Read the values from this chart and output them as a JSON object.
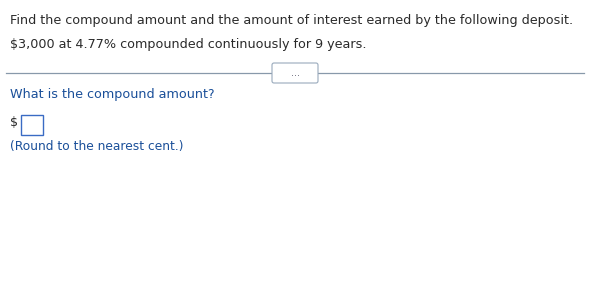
{
  "line1": "Find the compound amount and the amount of interest earned by the following deposit.",
  "line2": "$3,000 at 4.77% compounded continuously for 9 years.",
  "question": "What is the compound amount?",
  "dollar_sign": "$",
  "note": "(Round to the nearest cent.)",
  "divider_dots": "...",
  "bg_color": "#ffffff",
  "text_color_black": "#2a2a2a",
  "text_color_blue": "#1a4f99",
  "input_box_color": "#3a6bc4",
  "font_size_main": 9.2,
  "font_size_note": 8.8,
  "divider_color": "#8899aa",
  "button_color": "#99aabc"
}
